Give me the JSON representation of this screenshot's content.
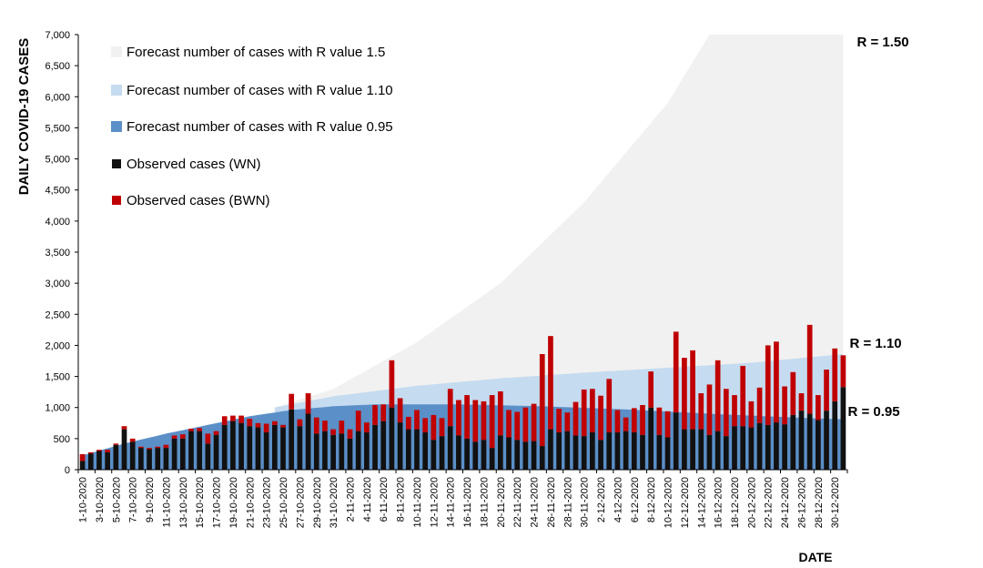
{
  "chart_data": {
    "type": "bar",
    "ylabel": "DAILY COVID-19 CASES",
    "xlabel": "DATE",
    "ylim": [
      0,
      7000
    ],
    "y_ticks": [
      0,
      500,
      1000,
      1500,
      2000,
      2500,
      3000,
      3500,
      4000,
      4500,
      5000,
      5500,
      6000,
      6500,
      7000
    ],
    "y_tick_labels": [
      "0",
      "500",
      "1,000",
      "1,500",
      "2,000",
      "2,500",
      "3,000",
      "3,500",
      "4,000",
      "4,500",
      "5,000",
      "5,500",
      "6,000",
      "6,500",
      "7,000"
    ],
    "x_tick_labels": [
      "1-10-2020",
      "3-10-2020",
      "5-10-2020",
      "7-10-2020",
      "9-10-2020",
      "11-10-2020",
      "13-10-2020",
      "15-10-2020",
      "17-10-2020",
      "19-10-2020",
      "21-10-2020",
      "23-10-2020",
      "25-10-2020",
      "27-10-2020",
      "29-10-2020",
      "31-10-2020",
      "2-11-2020",
      "4-11-2020",
      "6-11-2020",
      "8-11-2020",
      "10-11-2020",
      "12-11-2020",
      "14-11-2020",
      "16-11-2020",
      "18-11-2020",
      "20-11-2020",
      "22-11-2020",
      "24-11-2020",
      "26-11-2020",
      "28-11-2020",
      "30-11-2020",
      "2-12-2020",
      "4-12-2020",
      "6-12-2020",
      "8-12-2020",
      "10-12-2020",
      "12-12-2020",
      "14-12-2020",
      "16-12-2020",
      "18-12-2020",
      "20-12-2020",
      "22-12-2020",
      "24-12-2020",
      "26-12-2020",
      "28-12-2020",
      "30-12-2020"
    ],
    "legend_position": "top-left",
    "forecast_start_date": "24-10-2020",
    "series": [
      {
        "name": "Forecast number of cases with R value 1.5",
        "kind": "area",
        "color": "#f1f1f1",
        "r_label": "R = 1.50",
        "keyframes": [
          [
            23,
            1000
          ],
          [
            30,
            1300
          ],
          [
            40,
            2050
          ],
          [
            50,
            3000
          ],
          [
            60,
            4300
          ],
          [
            70,
            5900
          ],
          [
            75,
            7000
          ],
          [
            91,
            7000
          ]
        ]
      },
      {
        "name": "Forecast number of cases with R value 1.10",
        "kind": "area",
        "color": "#c5dbf0",
        "r_label": "R = 1.10",
        "keyframes": [
          [
            23,
            1000
          ],
          [
            30,
            1180
          ],
          [
            40,
            1350
          ],
          [
            50,
            1470
          ],
          [
            60,
            1560
          ],
          [
            70,
            1640
          ],
          [
            80,
            1720
          ],
          [
            91,
            1860
          ]
        ]
      },
      {
        "name": "Forecast number of cases with R value 0.95",
        "kind": "area",
        "color": "#5b8fc7",
        "r_label": "R = 0.95",
        "keyframes": [
          [
            0,
            230
          ],
          [
            5,
            420
          ],
          [
            10,
            580
          ],
          [
            15,
            720
          ],
          [
            20,
            860
          ],
          [
            25,
            960
          ],
          [
            30,
            1020
          ],
          [
            35,
            1050
          ],
          [
            45,
            1050
          ],
          [
            55,
            1020
          ],
          [
            65,
            970
          ],
          [
            75,
            900
          ],
          [
            85,
            840
          ],
          [
            91,
            810
          ]
        ]
      },
      {
        "name": "Observed cases (WN)",
        "kind": "bar",
        "color": "#111111",
        "values": [
          140,
          260,
          300,
          280,
          400,
          650,
          450,
          350,
          330,
          350,
          350,
          500,
          500,
          620,
          620,
          420,
          560,
          720,
          780,
          750,
          700,
          680,
          600,
          720,
          680,
          970,
          700,
          900,
          580,
          620,
          560,
          580,
          500,
          620,
          600,
          720,
          780,
          1000,
          760,
          650,
          650,
          600,
          480,
          540,
          700,
          550,
          500,
          450,
          480,
          350,
          550,
          520,
          480,
          450,
          460,
          380,
          650,
          600,
          620,
          550,
          540,
          600,
          480,
          600,
          600,
          620,
          600,
          560,
          1000,
          560,
          520,
          920,
          650,
          650,
          650,
          560,
          620,
          540,
          700,
          700,
          680,
          750,
          720,
          760,
          730,
          880,
          950,
          900,
          800,
          950,
          1100,
          1330
        ]
      },
      {
        "name": "Observed cases (BWN)",
        "kind": "bar",
        "color": "#c00000",
        "values": [
          110,
          20,
          20,
          40,
          20,
          50,
          50,
          20,
          20,
          20,
          50,
          50,
          70,
          40,
          50,
          160,
          60,
          140,
          90,
          120,
          120,
          70,
          140,
          60,
          40,
          250,
          110,
          330,
          260,
          170,
          90,
          210,
          150,
          330,
          160,
          320,
          270,
          760,
          390,
          200,
          310,
          230,
          400,
          290,
          600,
          570,
          700,
          670,
          620,
          850,
          710,
          440,
          450,
          550,
          600,
          1480,
          1500,
          380,
          300,
          540,
          750,
          700,
          710,
          860,
          360,
          220,
          390,
          480,
          580,
          440,
          420,
          1300,
          1150,
          1270,
          580,
          810,
          1140,
          760,
          500,
          970,
          420,
          570,
          1280,
          1300,
          610,
          690,
          280,
          1430,
          400,
          660,
          850,
          510
        ]
      }
    ]
  }
}
